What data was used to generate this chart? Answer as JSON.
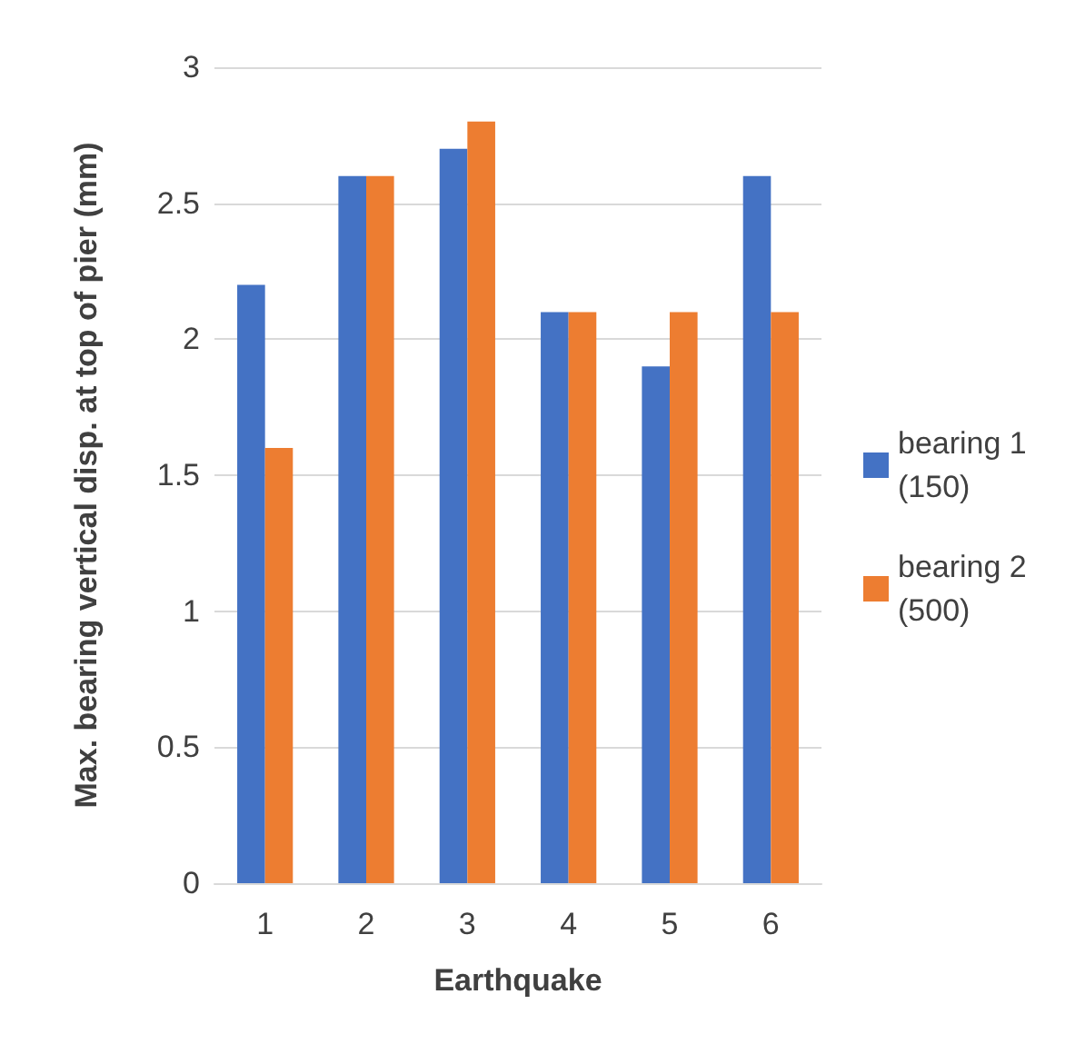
{
  "chart_data": {
    "type": "bar",
    "xlabel": "Earthquake",
    "ylabel": "Max. bearing vertical disp. at top of pier (mm)",
    "categories": [
      "1",
      "2",
      "3",
      "4",
      "5",
      "6"
    ],
    "series": [
      {
        "name": "bearing 1 (150)",
        "color": "#4472c4",
        "values": [
          2.2,
          2.6,
          2.7,
          2.1,
          1.9,
          2.6
        ]
      },
      {
        "name": "bearing 2 (500)",
        "color": "#ed7d31",
        "values": [
          1.6,
          2.6,
          2.8,
          2.1,
          2.1,
          2.1
        ]
      }
    ],
    "ylim": [
      0,
      3
    ],
    "yticks": [
      0,
      0.5,
      1,
      1.5,
      2,
      2.5,
      3
    ],
    "grid": "y",
    "legend": "right"
  }
}
